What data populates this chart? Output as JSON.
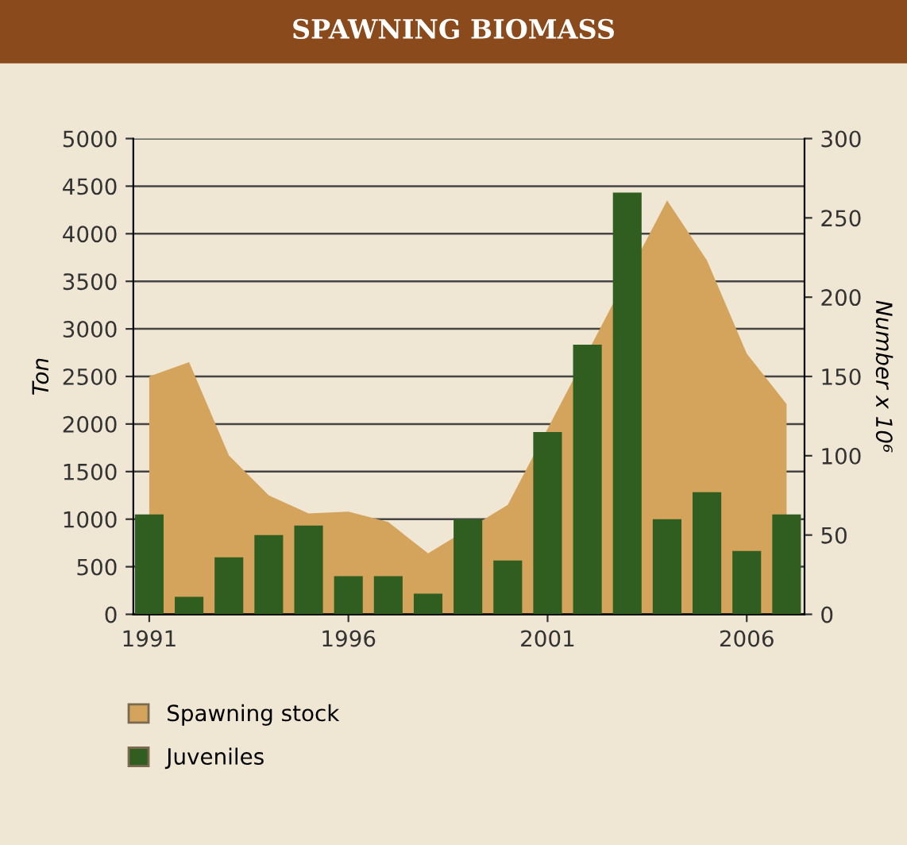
{
  "chart_data": {
    "type": "bar",
    "title": "SPAWNING BIOMASS",
    "ylabel": "Ton",
    "y2label": "Number x 10⁶",
    "x": [
      1991,
      1992,
      1993,
      1994,
      1995,
      1996,
      1997,
      1998,
      1999,
      2000,
      2001,
      2002,
      2003,
      2004,
      2005,
      2006,
      2007
    ],
    "series": [
      {
        "name": "Spawning stock",
        "type": "area",
        "axis": "y",
        "color": "#d4a45c",
        "values": [
          2500,
          2650,
          1670,
          1250,
          1060,
          1080,
          970,
          640,
          null,
          1150,
          null,
          null,
          null,
          4350,
          3720,
          2740,
          2210
        ]
      },
      {
        "name": "Juveniles",
        "axis": "y2",
        "color": "#2f5e20",
        "values": [
          63,
          11,
          36,
          50,
          56,
          24,
          24,
          13,
          60,
          34,
          115,
          170,
          266,
          60,
          77,
          40,
          63
        ]
      }
    ],
    "xlim": [
      1990.6,
      2007.45
    ],
    "xticks": [
      1991,
      1996,
      2001,
      2006
    ],
    "ylim": [
      0,
      5000
    ],
    "yticks": [
      0,
      500,
      1000,
      1500,
      2000,
      2500,
      3000,
      3500,
      4000,
      4500,
      5000
    ],
    "y2lim": [
      0,
      300
    ],
    "y2ticks": [
      0,
      50,
      100,
      150,
      200,
      250,
      300
    ],
    "grid": "y",
    "legend": "bottom left"
  }
}
